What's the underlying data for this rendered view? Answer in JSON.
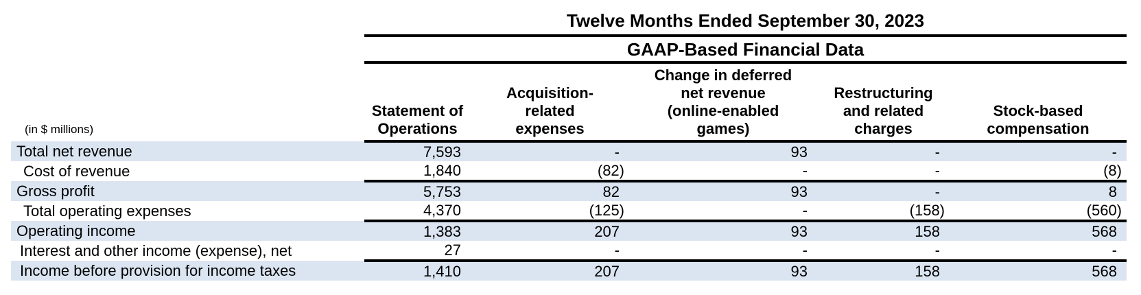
{
  "table": {
    "period_title": "Twelve Months Ended September 30, 2023",
    "data_title": "GAAP-Based Financial Data",
    "units_note": "(in $ millions)",
    "column_headers": [
      [
        "Statement of",
        "Operations"
      ],
      [
        "Acquisition-",
        "related",
        "expenses"
      ],
      [
        "Change in deferred",
        "net revenue",
        "(online-enabled",
        "games)"
      ],
      [
        "Restructuring",
        "and related",
        "charges"
      ],
      [
        "Stock-based",
        "compensation"
      ]
    ],
    "rows": [
      {
        "label": "Total net revenue",
        "values": [
          "7,593",
          "-",
          "93",
          "-",
          "-"
        ]
      },
      {
        "label": "Cost of revenue",
        "values": [
          "1,840",
          "(82)",
          "-",
          "-",
          "(8)"
        ]
      },
      {
        "label": "Gross profit",
        "values": [
          "5,753",
          "82",
          "93",
          "-",
          "8"
        ]
      },
      {
        "label": "Total operating expenses",
        "values": [
          "4,370",
          "(125)",
          "-",
          "(158)",
          "(560)"
        ]
      },
      {
        "label": "Operating income",
        "values": [
          "1,383",
          "207",
          "93",
          "158",
          "568"
        ]
      },
      {
        "label": "Interest and other income (expense), net",
        "values": [
          "27",
          "-",
          "-",
          "-",
          "-"
        ]
      },
      {
        "label": "Income before provision for income taxes",
        "values": [
          "1,410",
          "207",
          "93",
          "158",
          "568"
        ]
      }
    ]
  },
  "colors": {
    "row_highlight": "#dbe5f1",
    "rule": "#000000",
    "text": "#000000",
    "background": "#ffffff"
  }
}
